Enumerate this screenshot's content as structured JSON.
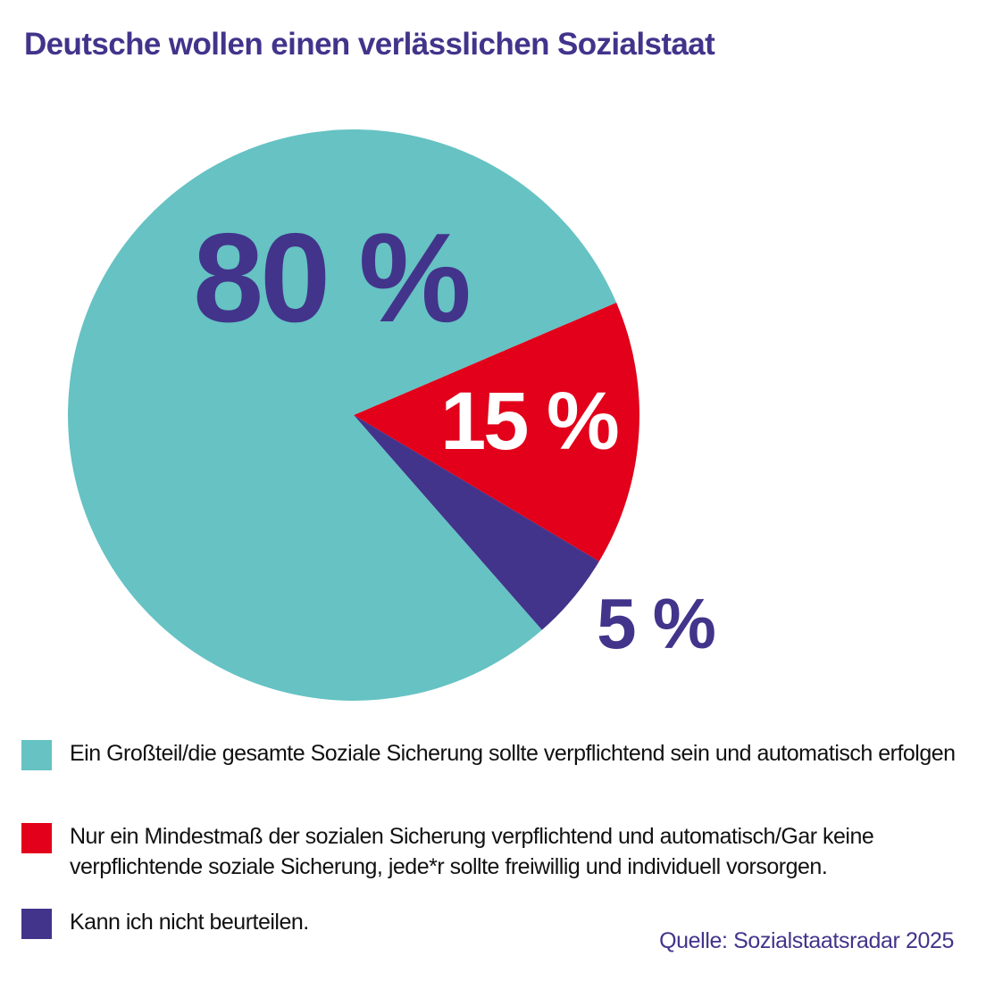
{
  "chart_data": {
    "type": "pie",
    "title": "Deutsche wollen einen verlässlichen Sozialstaat",
    "unit": "%",
    "slices": [
      {
        "label": "Ein Großteil/die gesamte Soziale Sicherung sollte verpflichtend sein und automatisch erfolgen",
        "value": 80,
        "display": "80 %",
        "color": "#66c2c3",
        "label_color": "#42348b"
      },
      {
        "label": "Nur ein Mindestmaß der sozialen Sicherung verpflichtend und automatisch/Gar keine verpflichtende soziale Sicherung,  jede*r sollte freiwillig und individuell vorsorgen.",
        "value": 15,
        "display": "15 %",
        "color": "#e2001a",
        "label_color": "#ffffff"
      },
      {
        "label": "Kann ich nicht beurteilen.",
        "value": 5,
        "display": "5 %",
        "color": "#42348b",
        "label_color": "#42348b"
      }
    ],
    "legend_position": "bottom-left",
    "source": "Quelle: Sozialstaatsradar 2025"
  }
}
